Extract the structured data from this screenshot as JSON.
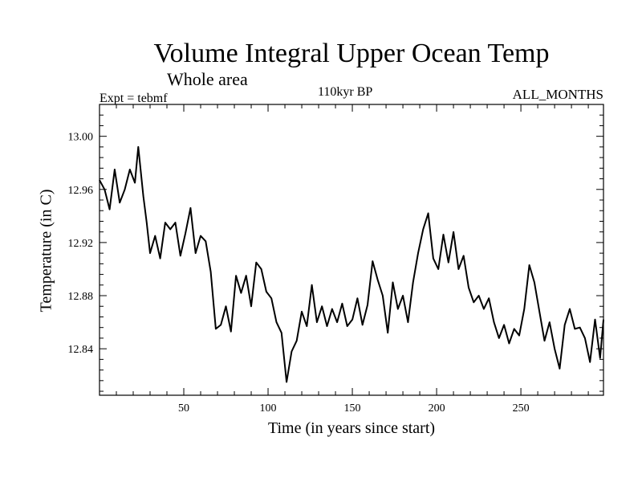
{
  "chart_data": {
    "type": "line",
    "title": "Volume Integral Upper Ocean Temp",
    "subtitle": "Whole area",
    "experiment_label": "Expt = tebmf",
    "period_label": "110kyr BP",
    "months_label": "ALL_MONTHS",
    "xlabel": "Time (in years since start)",
    "ylabel": "Temperature (in C)",
    "xlim": [
      0,
      299
    ],
    "ylim": [
      12.805,
      13.024
    ],
    "xticks": [
      50,
      100,
      150,
      200,
      250
    ],
    "yticks": [
      12.84,
      12.88,
      12.92,
      12.96,
      13.0
    ],
    "ytick_labels": [
      "12.84",
      "12.88",
      "12.92",
      "12.96",
      "13.00"
    ],
    "grid": false,
    "series": [
      {
        "name": "Volume integral upper ocean temperature",
        "color": "#000000",
        "x": [
          0,
          3,
          6,
          9,
          12,
          15,
          18,
          21,
          23,
          26,
          28,
          30,
          33,
          36,
          39,
          42,
          45,
          48,
          51,
          54,
          57,
          60,
          63,
          66,
          69,
          72,
          75,
          78,
          81,
          84,
          87,
          90,
          93,
          96,
          99,
          102,
          105,
          108,
          111,
          114,
          117,
          120,
          123,
          126,
          129,
          132,
          135,
          138,
          141,
          144,
          147,
          150,
          153,
          156,
          159,
          162,
          165,
          168,
          171,
          174,
          177,
          180,
          183,
          186,
          189,
          192,
          195,
          198,
          201,
          204,
          207,
          210,
          213,
          216,
          219,
          222,
          225,
          228,
          231,
          234,
          237,
          240,
          243,
          246,
          249,
          252,
          255,
          258,
          261,
          264,
          267,
          270,
          273,
          276,
          279,
          282,
          285,
          288,
          291,
          294,
          297,
          299
        ],
        "y": [
          12.967,
          12.96,
          12.945,
          12.975,
          12.95,
          12.96,
          12.975,
          12.965,
          12.992,
          12.955,
          12.935,
          12.912,
          12.925,
          12.908,
          12.935,
          12.93,
          12.935,
          12.91,
          12.927,
          12.946,
          12.912,
          12.925,
          12.921,
          12.898,
          12.855,
          12.858,
          12.872,
          12.853,
          12.895,
          12.882,
          12.895,
          12.872,
          12.905,
          12.9,
          12.883,
          12.878,
          12.86,
          12.852,
          12.815,
          12.838,
          12.846,
          12.868,
          12.857,
          12.888,
          12.86,
          12.872,
          12.857,
          12.87,
          12.86,
          12.874,
          12.857,
          12.862,
          12.878,
          12.858,
          12.873,
          12.906,
          12.892,
          12.88,
          12.852,
          12.89,
          12.87,
          12.88,
          12.86,
          12.89,
          12.912,
          12.93,
          12.942,
          12.908,
          12.9,
          12.926,
          12.905,
          12.928,
          12.9,
          12.91,
          12.886,
          12.875,
          12.88,
          12.87,
          12.878,
          12.86,
          12.848,
          12.858,
          12.844,
          12.855,
          12.85,
          12.87,
          12.903,
          12.89,
          12.868,
          12.846,
          12.86,
          12.84,
          12.825,
          12.858,
          12.87,
          12.855,
          12.856,
          12.848,
          12.83,
          12.862,
          12.833,
          12.862
        ]
      }
    ]
  }
}
